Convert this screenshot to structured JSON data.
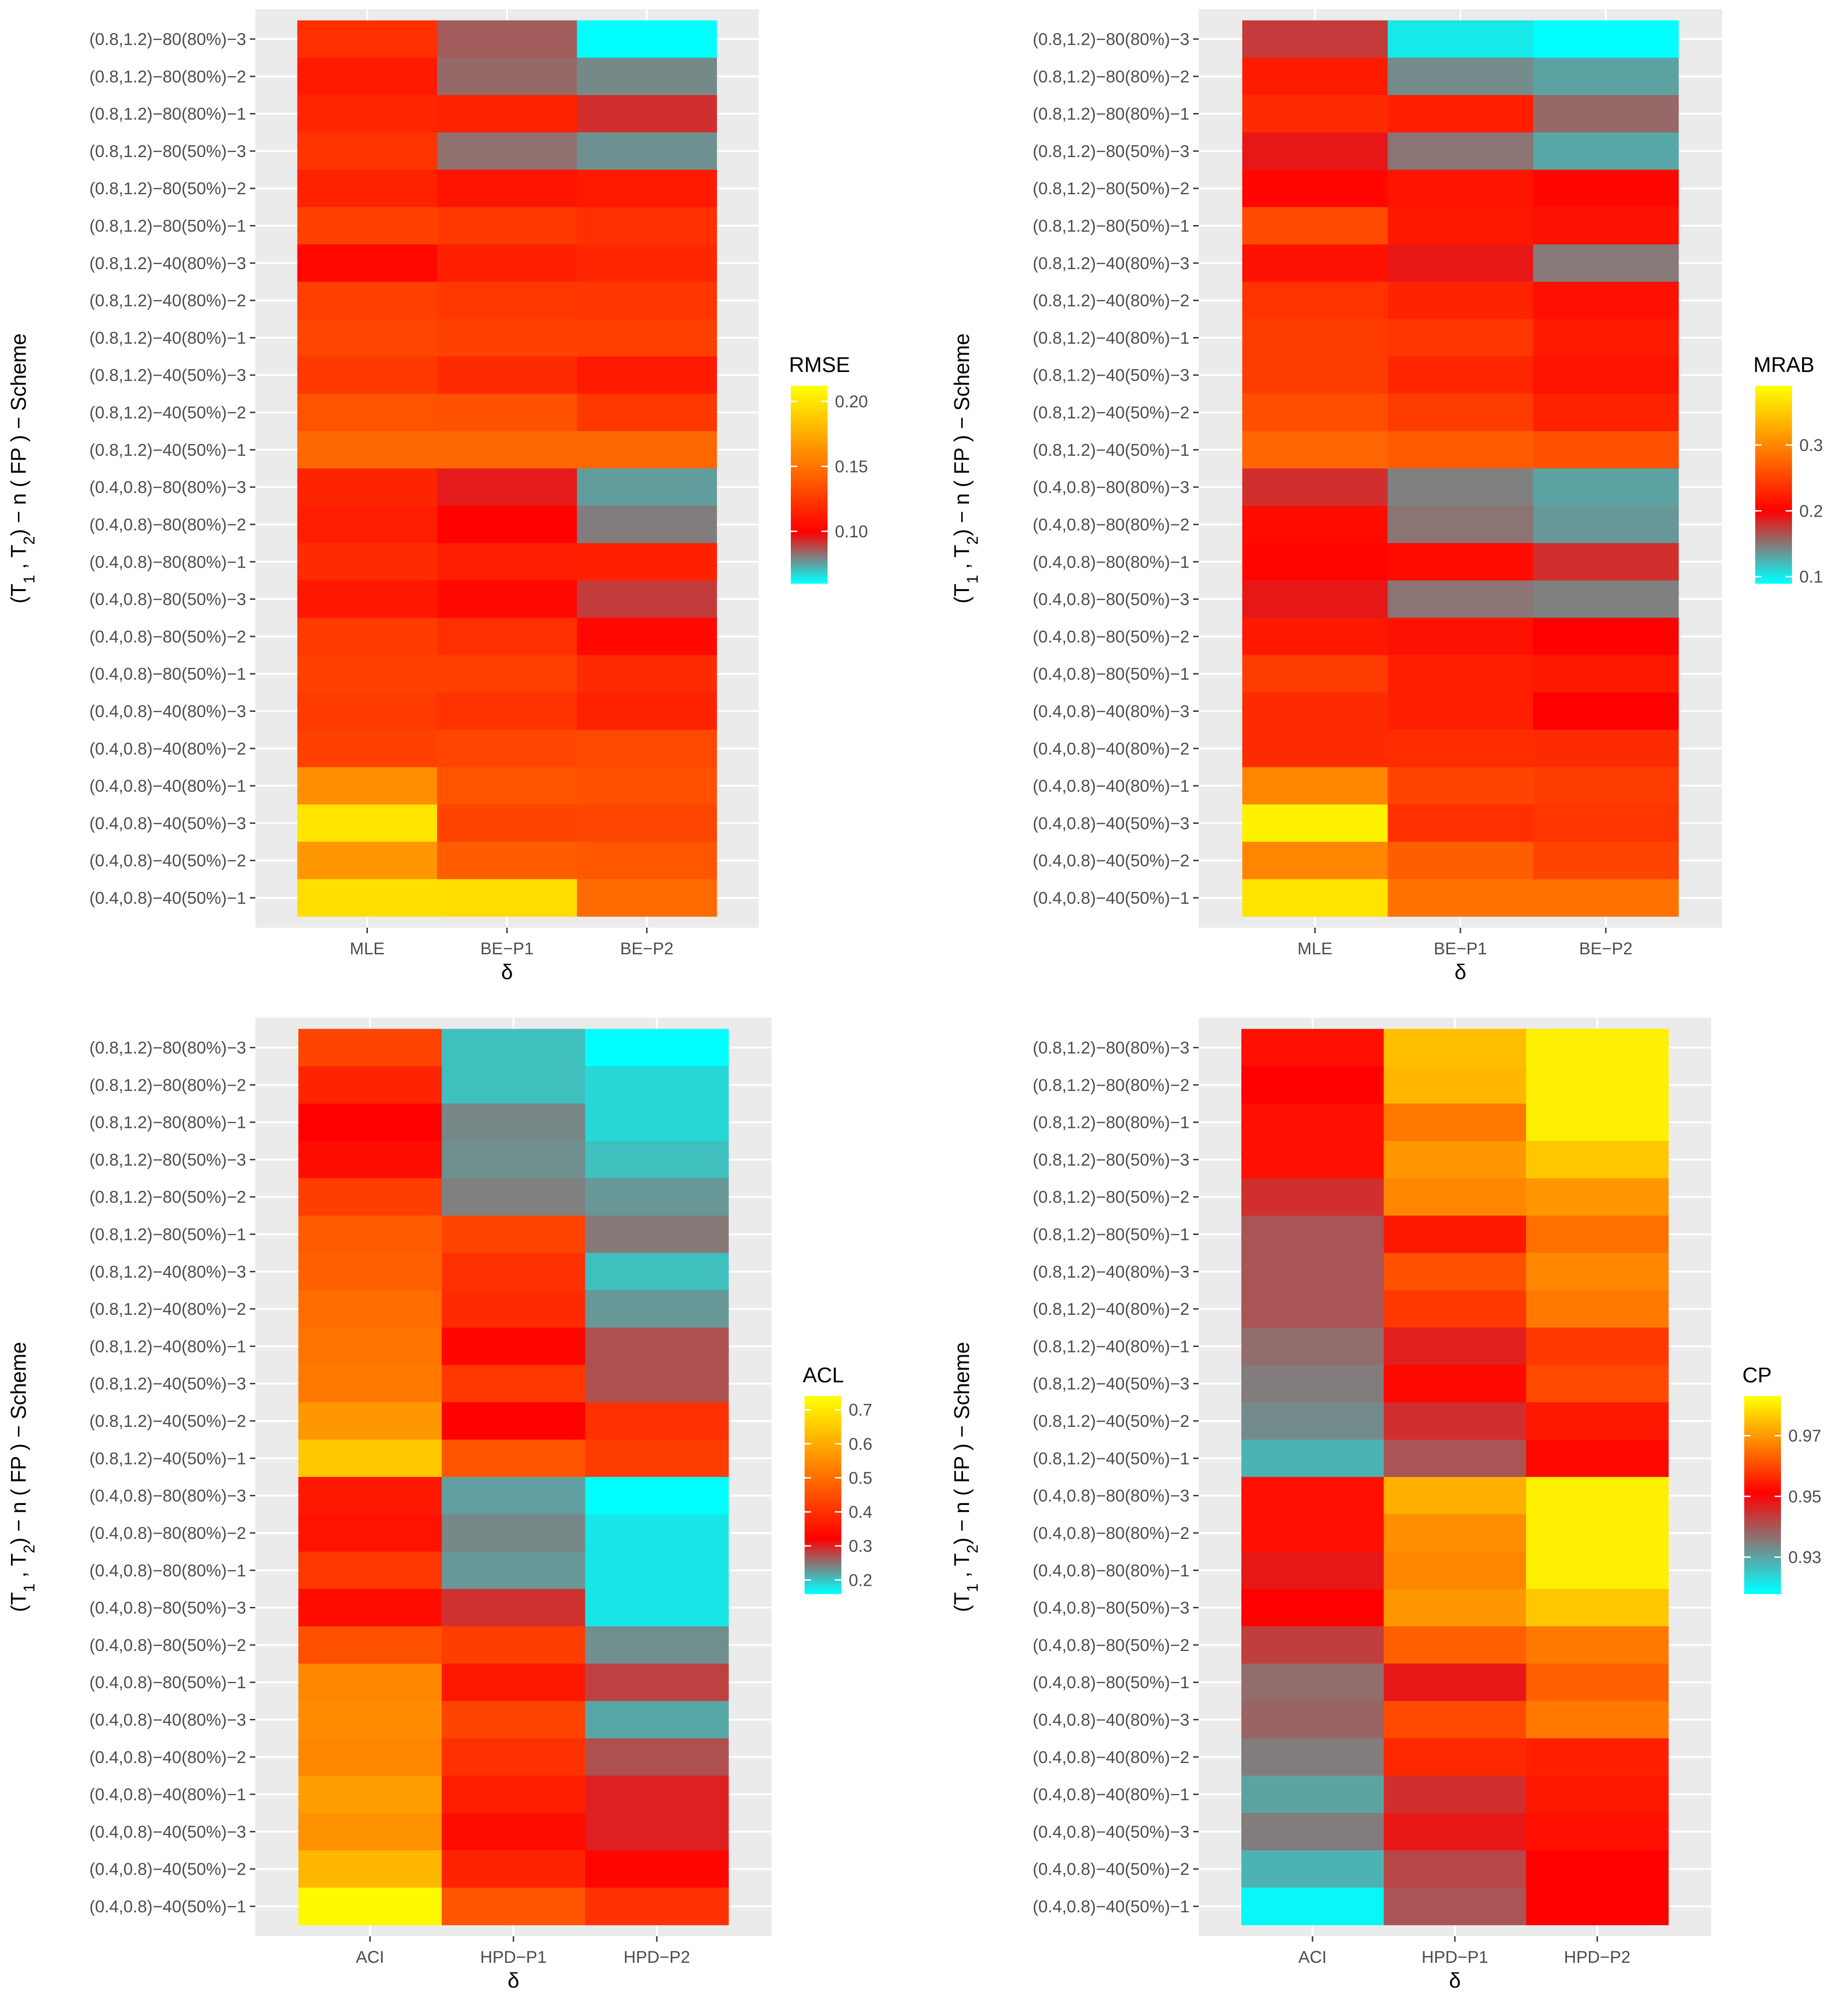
{
  "chart_data": [
    {
      "type": "heatmap",
      "title": "",
      "xlabel": "δ",
      "ylabel_parts": [
        "(T",
        "1",
        " , T",
        "2",
        ") − n ( FP ) − Scheme"
      ],
      "categories": [
        "MLE",
        "BE−P1",
        "BE−P2"
      ],
      "rows": [
        "(0.8,1.2)−80(80%)−3",
        "(0.8,1.2)−80(80%)−2",
        "(0.8,1.2)−80(80%)−1",
        "(0.8,1.2)−80(50%)−3",
        "(0.8,1.2)−80(50%)−2",
        "(0.8,1.2)−80(50%)−1",
        "(0.8,1.2)−40(80%)−3",
        "(0.8,1.2)−40(80%)−2",
        "(0.8,1.2)−40(80%)−1",
        "(0.8,1.2)−40(50%)−3",
        "(0.8,1.2)−40(50%)−2",
        "(0.8,1.2)−40(50%)−1",
        "(0.4,0.8)−80(80%)−3",
        "(0.4,0.8)−80(80%)−2",
        "(0.4,0.8)−80(80%)−1",
        "(0.4,0.8)−80(50%)−3",
        "(0.4,0.8)−80(50%)−2",
        "(0.4,0.8)−80(50%)−1",
        "(0.4,0.8)−40(80%)−3",
        "(0.4,0.8)−40(80%)−2",
        "(0.4,0.8)−40(80%)−1",
        "(0.4,0.8)−40(50%)−3",
        "(0.4,0.8)−40(50%)−2",
        "(0.4,0.8)−40(50%)−1"
      ],
      "values": [
        [
          0.12,
          0.085,
          0.06
        ],
        [
          0.11,
          0.083,
          0.078
        ],
        [
          0.116,
          0.114,
          0.092
        ],
        [
          0.122,
          0.082,
          0.077
        ],
        [
          0.114,
          0.108,
          0.11
        ],
        [
          0.128,
          0.124,
          0.12
        ],
        [
          0.103,
          0.113,
          0.116
        ],
        [
          0.127,
          0.124,
          0.123
        ],
        [
          0.13,
          0.128,
          0.127
        ],
        [
          0.124,
          0.118,
          0.11
        ],
        [
          0.136,
          0.135,
          0.124
        ],
        [
          0.145,
          0.145,
          0.145
        ],
        [
          0.115,
          0.095,
          0.075
        ],
        [
          0.112,
          0.1,
          0.08
        ],
        [
          0.118,
          0.112,
          0.113
        ],
        [
          0.109,
          0.103,
          0.09
        ],
        [
          0.125,
          0.12,
          0.103
        ],
        [
          0.128,
          0.127,
          0.118
        ],
        [
          0.125,
          0.121,
          0.114
        ],
        [
          0.128,
          0.13,
          0.131
        ],
        [
          0.162,
          0.136,
          0.135
        ],
        [
          0.2,
          0.129,
          0.13
        ],
        [
          0.166,
          0.14,
          0.137
        ],
        [
          0.198,
          0.197,
          0.146
        ]
      ],
      "legend": {
        "title": "RMSE",
        "ticks": [
          0.1,
          0.15,
          0.2
        ],
        "tick_labels": [
          "0.10",
          "0.15",
          "0.20"
        ],
        "min": 0.06,
        "max": 0.212,
        "center": 0.099,
        "position": "right"
      },
      "grid": true
    },
    {
      "type": "heatmap",
      "title": "",
      "xlabel": "δ",
      "ylabel_parts": [
        "(T",
        "1",
        " , T",
        "2",
        ") − n ( FP ) − Scheme"
      ],
      "categories": [
        "MLE",
        "BE−P1",
        "BE−P2"
      ],
      "rows": [
        "(0.8,1.2)−80(80%)−3",
        "(0.8,1.2)−80(80%)−2",
        "(0.8,1.2)−80(80%)−1",
        "(0.8,1.2)−80(50%)−3",
        "(0.8,1.2)−80(50%)−2",
        "(0.8,1.2)−80(50%)−1",
        "(0.8,1.2)−40(80%)−3",
        "(0.8,1.2)−40(80%)−2",
        "(0.8,1.2)−40(80%)−1",
        "(0.8,1.2)−40(50%)−3",
        "(0.8,1.2)−40(50%)−2",
        "(0.8,1.2)−40(50%)−1",
        "(0.4,0.8)−80(80%)−3",
        "(0.4,0.8)−80(80%)−2",
        "(0.4,0.8)−80(80%)−1",
        "(0.4,0.8)−80(50%)−3",
        "(0.4,0.8)−80(50%)−2",
        "(0.4,0.8)−80(50%)−1",
        "(0.4,0.8)−40(80%)−3",
        "(0.4,0.8)−40(80%)−2",
        "(0.4,0.8)−40(80%)−1",
        "(0.4,0.8)−40(50%)−3",
        "(0.4,0.8)−40(50%)−2",
        "(0.4,0.8)−40(50%)−1"
      ],
      "values": [
        [
          0.175,
          0.1,
          0.09
        ],
        [
          0.22,
          0.14,
          0.13
        ],
        [
          0.232,
          0.222,
          0.155
        ],
        [
          0.19,
          0.15,
          0.128
        ],
        [
          0.205,
          0.215,
          0.205
        ],
        [
          0.255,
          0.218,
          0.213
        ],
        [
          0.213,
          0.19,
          0.148
        ],
        [
          0.238,
          0.226,
          0.212
        ],
        [
          0.245,
          0.24,
          0.22
        ],
        [
          0.245,
          0.228,
          0.215
        ],
        [
          0.258,
          0.245,
          0.225
        ],
        [
          0.275,
          0.268,
          0.26
        ],
        [
          0.18,
          0.145,
          0.13
        ],
        [
          0.208,
          0.15,
          0.135
        ],
        [
          0.203,
          0.208,
          0.18
        ],
        [
          0.19,
          0.15,
          0.145
        ],
        [
          0.218,
          0.213,
          0.2
        ],
        [
          0.245,
          0.222,
          0.218
        ],
        [
          0.232,
          0.223,
          0.2
        ],
        [
          0.232,
          0.233,
          0.232
        ],
        [
          0.3,
          0.25,
          0.245
        ],
        [
          0.38,
          0.235,
          0.24
        ],
        [
          0.3,
          0.27,
          0.25
        ],
        [
          0.37,
          0.285,
          0.285
        ]
      ],
      "legend": {
        "title": "MRAB",
        "ticks": [
          0.1,
          0.2,
          0.3
        ],
        "tick_labels": [
          "0.1",
          "0.2",
          "0.3"
        ],
        "min": 0.09,
        "max": 0.39,
        "center": 0.2,
        "position": "right"
      },
      "grid": true
    },
    {
      "type": "heatmap",
      "title": "",
      "xlabel": "δ",
      "ylabel_parts": [
        "(T",
        "1",
        " , T",
        "2",
        ") − n ( FP ) − Scheme"
      ],
      "categories": [
        "ACI",
        "HPD−P1",
        "HPD−P2"
      ],
      "rows": [
        "(0.8,1.2)−80(80%)−3",
        "(0.8,1.2)−80(80%)−2",
        "(0.8,1.2)−80(80%)−1",
        "(0.8,1.2)−80(50%)−3",
        "(0.8,1.2)−80(50%)−2",
        "(0.8,1.2)−80(50%)−1",
        "(0.8,1.2)−40(80%)−3",
        "(0.8,1.2)−40(80%)−2",
        "(0.8,1.2)−40(80%)−1",
        "(0.8,1.2)−40(50%)−3",
        "(0.8,1.2)−40(50%)−2",
        "(0.8,1.2)−40(50%)−1",
        "(0.4,0.8)−80(80%)−3",
        "(0.4,0.8)−80(80%)−2",
        "(0.4,0.8)−80(80%)−1",
        "(0.4,0.8)−80(50%)−3",
        "(0.4,0.8)−80(50%)−2",
        "(0.4,0.8)−80(50%)−1",
        "(0.4,0.8)−40(80%)−3",
        "(0.4,0.8)−40(80%)−2",
        "(0.4,0.8)−40(80%)−1",
        "(0.4,0.8)−40(50%)−3",
        "(0.4,0.8)−40(50%)−2",
        "(0.4,0.8)−40(50%)−1"
      ],
      "values": [
        [
          0.43,
          0.2,
          0.16
        ],
        [
          0.38,
          0.2,
          0.185
        ],
        [
          0.32,
          0.235,
          0.185
        ],
        [
          0.34,
          0.23,
          0.2
        ],
        [
          0.42,
          0.24,
          0.225
        ],
        [
          0.47,
          0.43,
          0.245
        ],
        [
          0.48,
          0.4,
          0.2
        ],
        [
          0.5,
          0.39,
          0.225
        ],
        [
          0.51,
          0.33,
          0.27
        ],
        [
          0.52,
          0.41,
          0.27
        ],
        [
          0.57,
          0.32,
          0.4
        ],
        [
          0.65,
          0.46,
          0.42
        ],
        [
          0.36,
          0.22,
          0.16
        ],
        [
          0.35,
          0.235,
          0.175
        ],
        [
          0.41,
          0.225,
          0.175
        ],
        [
          0.34,
          0.29,
          0.175
        ],
        [
          0.45,
          0.42,
          0.23
        ],
        [
          0.54,
          0.36,
          0.28
        ],
        [
          0.55,
          0.43,
          0.215
        ],
        [
          0.54,
          0.4,
          0.27
        ],
        [
          0.58,
          0.37,
          0.3
        ],
        [
          0.56,
          0.34,
          0.3
        ],
        [
          0.62,
          0.38,
          0.33
        ],
        [
          0.73,
          0.46,
          0.4
        ]
      ],
      "legend": {
        "title": "ACL",
        "ticks": [
          0.2,
          0.3,
          0.4,
          0.5,
          0.6,
          0.7
        ],
        "tick_labels": [
          "0.2",
          "0.3",
          "0.4",
          "0.5",
          "0.6",
          "0.7"
        ],
        "min": 0.16,
        "max": 0.74,
        "center": 0.32,
        "position": "right"
      },
      "grid": true
    },
    {
      "type": "heatmap",
      "title": "",
      "xlabel": "δ",
      "ylabel_parts": [
        "(T",
        "1",
        " , T",
        "2",
        ") − n ( FP ) − Scheme"
      ],
      "categories": [
        "ACI",
        "HPD−P1",
        "HPD−P2"
      ],
      "rows": [
        "(0.8,1.2)−80(80%)−3",
        "(0.8,1.2)−80(80%)−2",
        "(0.8,1.2)−80(80%)−1",
        "(0.8,1.2)−80(50%)−3",
        "(0.8,1.2)−80(50%)−2",
        "(0.8,1.2)−80(50%)−1",
        "(0.8,1.2)−40(80%)−3",
        "(0.8,1.2)−40(80%)−2",
        "(0.8,1.2)−40(80%)−1",
        "(0.8,1.2)−40(50%)−3",
        "(0.8,1.2)−40(50%)−2",
        "(0.8,1.2)−40(50%)−1",
        "(0.4,0.8)−80(80%)−3",
        "(0.4,0.8)−80(80%)−2",
        "(0.4,0.8)−80(80%)−1",
        "(0.4,0.8)−80(50%)−3",
        "(0.4,0.8)−80(50%)−2",
        "(0.4,0.8)−80(50%)−1",
        "(0.4,0.8)−40(80%)−3",
        "(0.4,0.8)−40(80%)−2",
        "(0.4,0.8)−40(80%)−1",
        "(0.4,0.8)−40(50%)−3",
        "(0.4,0.8)−40(50%)−2",
        "(0.4,0.8)−40(50%)−1"
      ],
      "values": [
        [
          0.953,
          0.975,
          0.981
        ],
        [
          0.951,
          0.974,
          0.981
        ],
        [
          0.953,
          0.966,
          0.981
        ],
        [
          0.953,
          0.97,
          0.976
        ],
        [
          0.945,
          0.968,
          0.97
        ],
        [
          0.94,
          0.954,
          0.965
        ],
        [
          0.94,
          0.961,
          0.968
        ],
        [
          0.94,
          0.958,
          0.966
        ],
        [
          0.937,
          0.947,
          0.958
        ],
        [
          0.935,
          0.952,
          0.96
        ],
        [
          0.933,
          0.945,
          0.954
        ],
        [
          0.928,
          0.94,
          0.952
        ],
        [
          0.953,
          0.973,
          0.981
        ],
        [
          0.953,
          0.969,
          0.981
        ],
        [
          0.948,
          0.968,
          0.981
        ],
        [
          0.951,
          0.97,
          0.976
        ],
        [
          0.943,
          0.963,
          0.966
        ],
        [
          0.937,
          0.948,
          0.963
        ],
        [
          0.938,
          0.96,
          0.966
        ],
        [
          0.935,
          0.956,
          0.955
        ],
        [
          0.93,
          0.945,
          0.954
        ],
        [
          0.935,
          0.948,
          0.953
        ],
        [
          0.928,
          0.942,
          0.951
        ],
        [
          0.919,
          0.94,
          0.951
        ]
      ],
      "legend": {
        "title": "CP",
        "ticks": [
          0.93,
          0.95,
          0.97
        ],
        "tick_labels": [
          "0.93",
          "0.95",
          "0.97"
        ],
        "min": 0.918,
        "max": 0.983,
        "center": 0.951,
        "position": "right"
      },
      "grid": true
    }
  ]
}
